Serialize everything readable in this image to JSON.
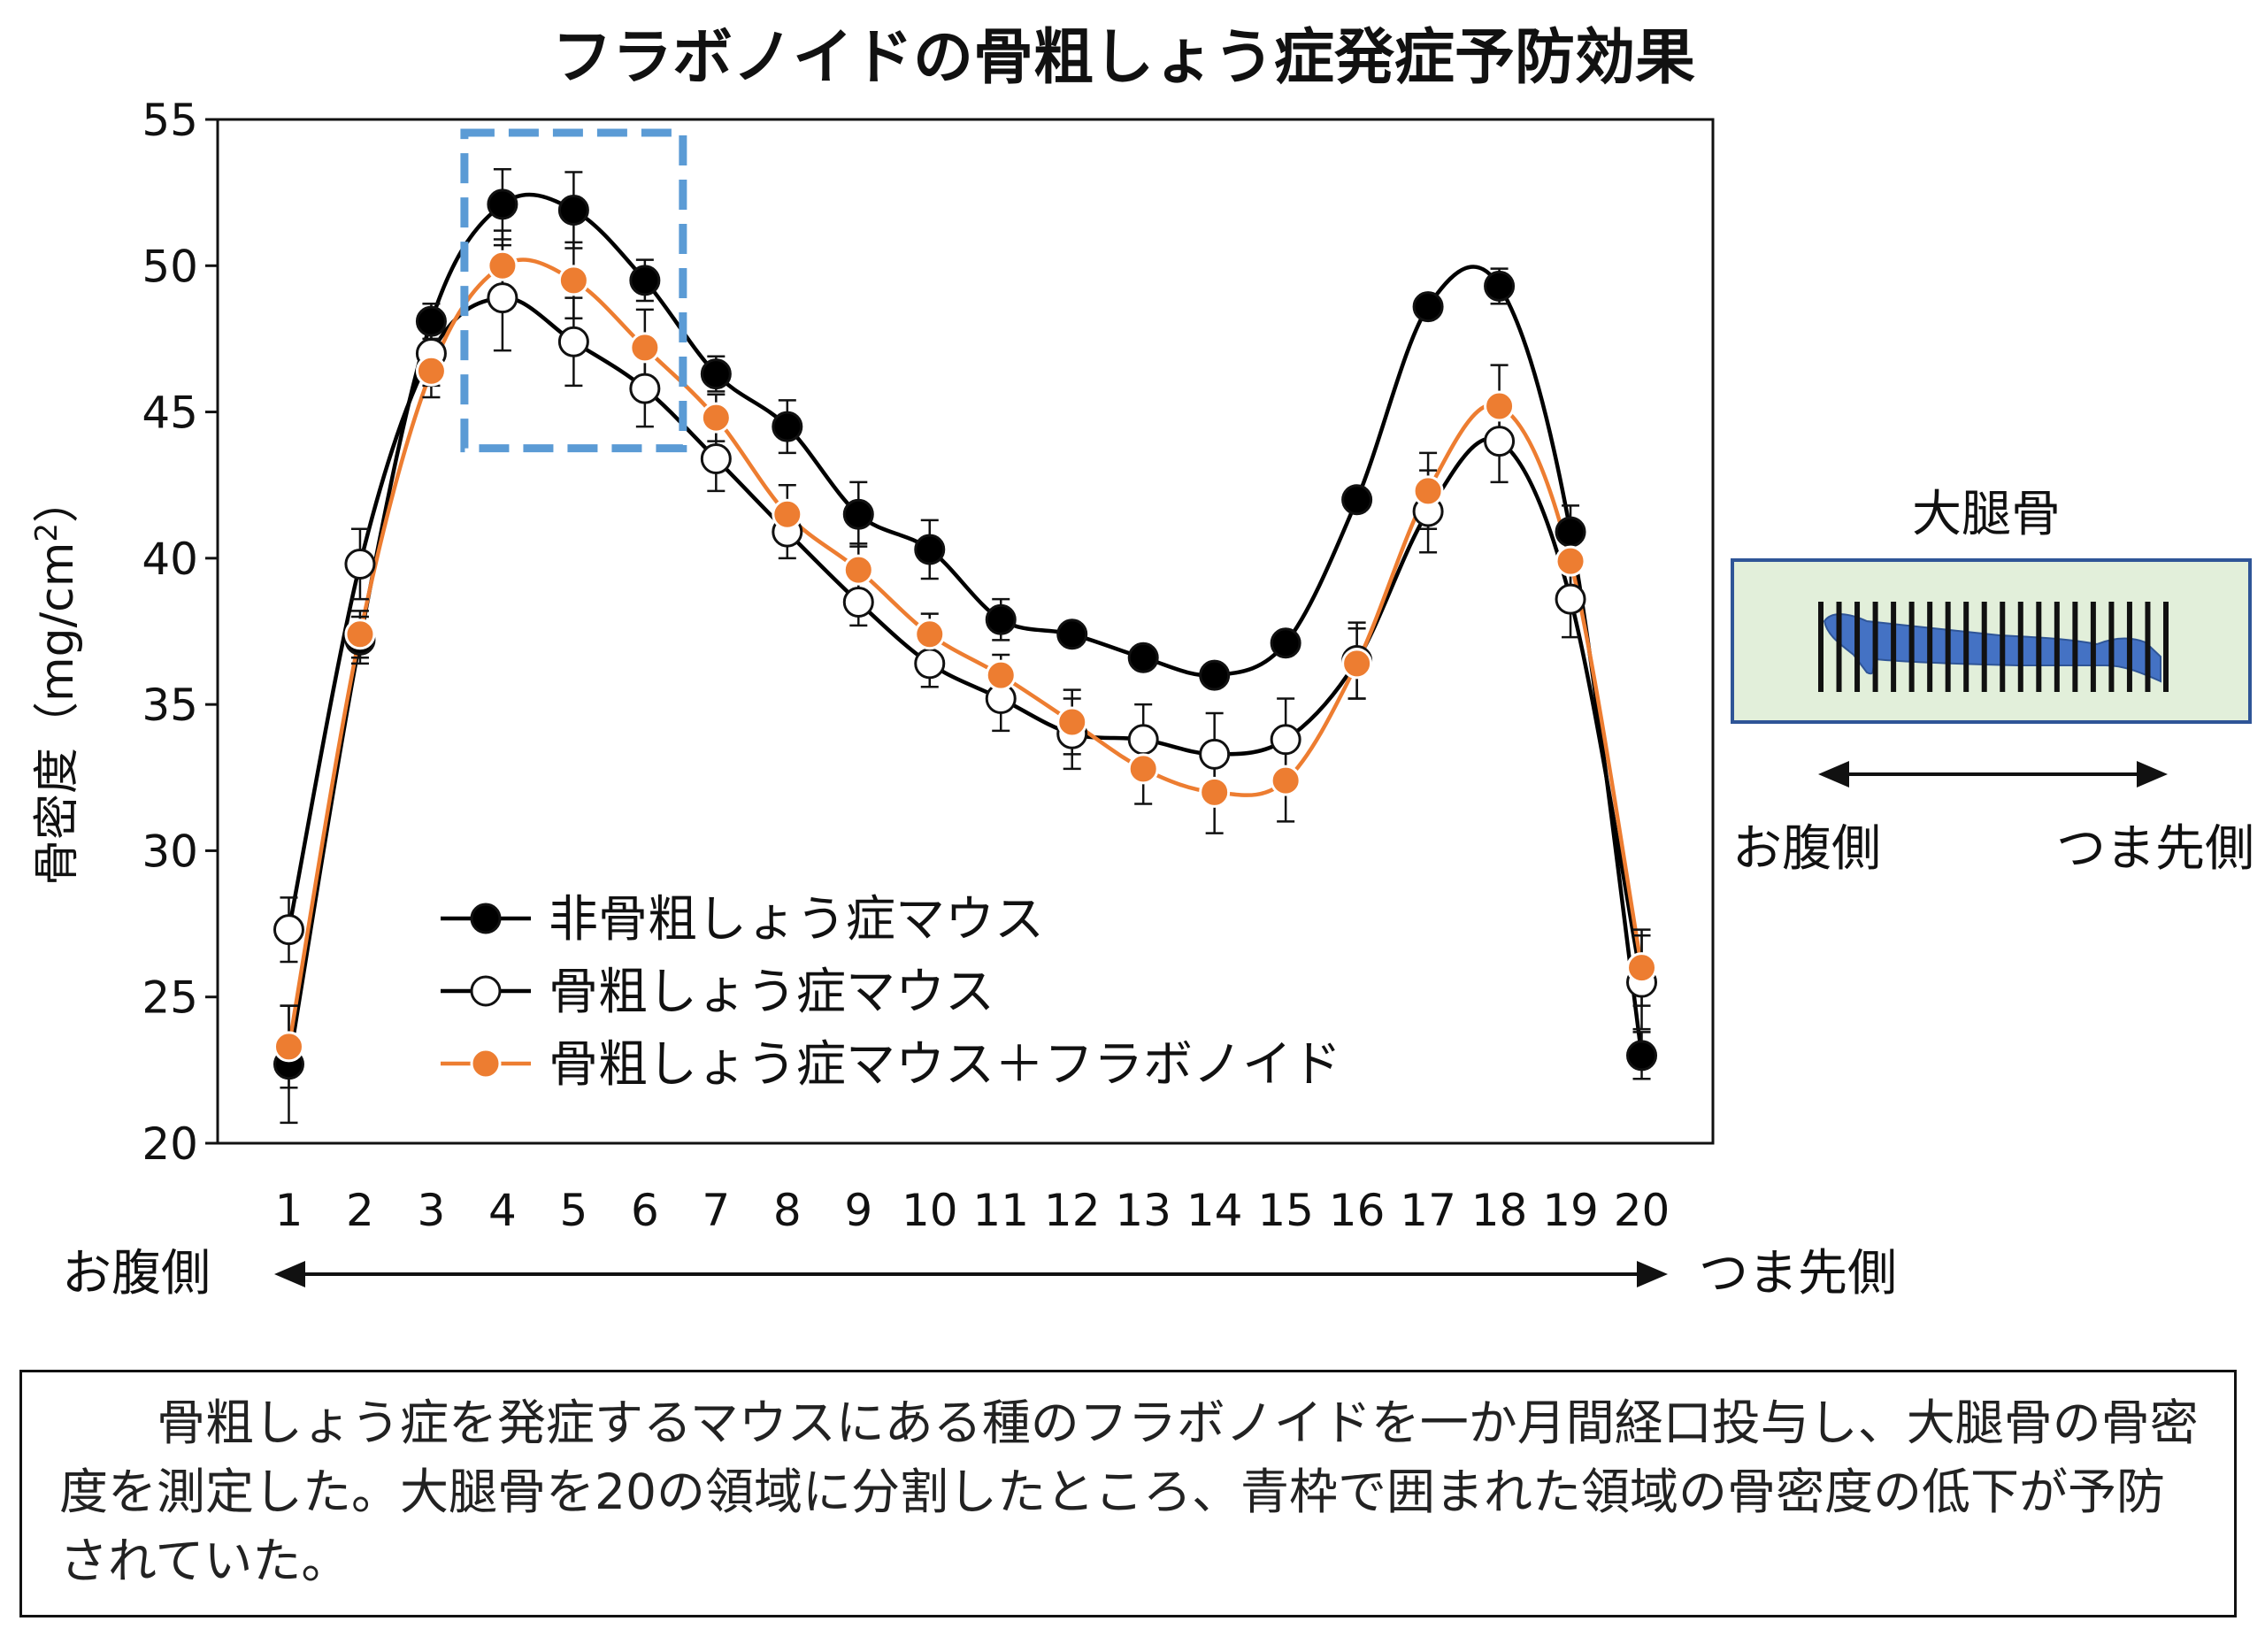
{
  "chart_data": {
    "type": "line",
    "title": "フラボノイドの骨粗しょう症発症予防効果",
    "ylabel": "骨密度（mg/cm²）",
    "ylabel_parts": {
      "main": "骨密度（mg/cm",
      "sup": "2",
      "close": "）"
    },
    "ylim": [
      20,
      55
    ],
    "yticks": [
      "20",
      "25",
      "30",
      "35",
      "40",
      "45",
      "50",
      "55"
    ],
    "xlim": [
      0,
      21
    ],
    "categories": [
      "1",
      "2",
      "3",
      "4",
      "5",
      "6",
      "7",
      "8",
      "9",
      "10",
      "11",
      "12",
      "13",
      "14",
      "15",
      "16",
      "17",
      "18",
      "19",
      "20"
    ],
    "x_direction": {
      "left": "お腹側",
      "right": "つま先側"
    },
    "grid": false,
    "legend_position": "lower-left (inside plot)",
    "highlight_box": {
      "from_category": "4",
      "to_category": "6",
      "color": "#5b9bd5",
      "style": "dashed"
    },
    "series": [
      {
        "name": "非骨粗しょう症マウス",
        "color": "#000000",
        "marker": "filled",
        "values": [
          22.7,
          37.2,
          48.1,
          52.1,
          51.9,
          49.5,
          46.3,
          44.5,
          41.5,
          40.3,
          37.9,
          37.4,
          36.6,
          36.0,
          37.1,
          42.0,
          48.6,
          49.3,
          40.9,
          23.0
        ],
        "errors": [
          2.0,
          0.8,
          0.6,
          1.2,
          1.3,
          0.7,
          0.6,
          0.9,
          1.1,
          1.0,
          0.7,
          0.4,
          0.3,
          0.3,
          0.3,
          0.4,
          0.4,
          0.6,
          0.9,
          0.8
        ]
      },
      {
        "name": "骨粗しょう症マウス",
        "color": "#000000",
        "marker": "open",
        "values": [
          27.3,
          39.8,
          47.0,
          48.9,
          47.4,
          45.8,
          43.4,
          40.9,
          38.5,
          36.4,
          35.2,
          34.0,
          33.8,
          33.3,
          33.8,
          36.5,
          41.6,
          44.0,
          38.6,
          25.5
        ],
        "errors": [
          1.1,
          1.2,
          1.1,
          1.8,
          1.5,
          1.3,
          1.1,
          0.9,
          0.8,
          0.8,
          1.1,
          1.2,
          1.2,
          1.4,
          1.4,
          1.3,
          1.4,
          1.4,
          1.3,
          1.6
        ]
      },
      {
        "name": "骨粗しょう症マウス＋フラボノイド",
        "color": "#ed7d31",
        "marker": "filled",
        "values": [
          23.3,
          37.4,
          46.4,
          50.0,
          49.5,
          47.2,
          44.8,
          41.5,
          39.6,
          37.4,
          36.0,
          34.4,
          32.8,
          32.0,
          32.4,
          36.4,
          42.3,
          45.2,
          39.9,
          26.0
        ],
        "errors": [
          1.4,
          0.8,
          0.9,
          1.2,
          1.3,
          1.3,
          0.8,
          1.0,
          0.9,
          0.7,
          0.7,
          1.1,
          1.2,
          1.4,
          1.4,
          1.2,
          1.3,
          1.4,
          1.2,
          1.3
        ]
      }
    ]
  },
  "inset": {
    "title": "大腿骨",
    "left_label": "お腹側",
    "right_label": "つま先側",
    "bg_color": "#e2efda",
    "border_color": "#2f5597",
    "bone_color": "#4472c4",
    "stripe_count": 20
  },
  "caption": {
    "text": "骨粗しょう症を発症するマウスにある種のフラボノイドを一か月間経口投与し、大腿骨の骨密度を測定した。大腿骨を20の領域に分割したところ、青枠で囲まれた領域の骨密度の低下が予防されていた。"
  }
}
